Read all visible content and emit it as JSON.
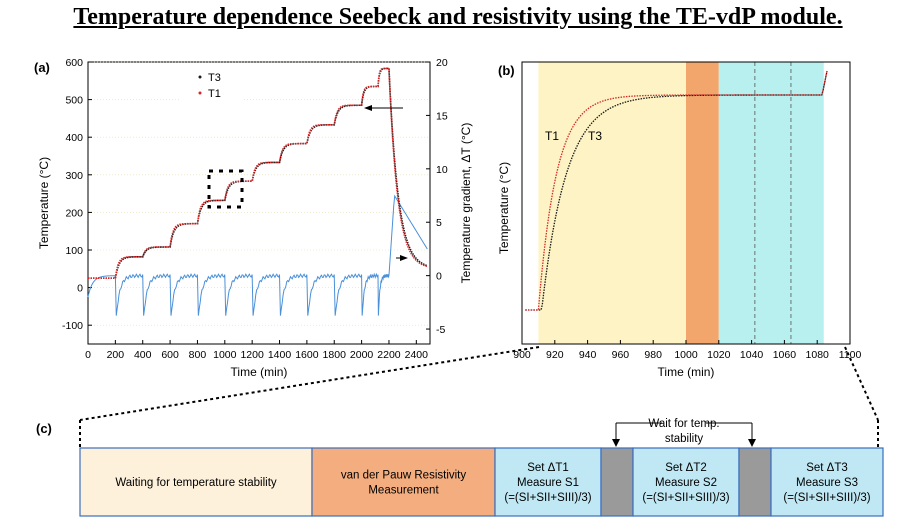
{
  "page_title": "Temperature dependence Seebeck and resistivity using the TE-vdP module.",
  "colors": {
    "t1": "#d62828",
    "t3": "#1a1a1a",
    "gradient": "#4a90d9",
    "yellow": "#fdf3c4",
    "orange": "#f2a66b",
    "cyan": "#b8f0f0",
    "gray": "#9a9a9a",
    "box_fill_c": "#fdf1dc",
    "box_fill_orange": "#f4ad7e",
    "box_fill_cyan": "#bfe8f4",
    "box_stroke": "#3a6ebd"
  },
  "chart_data": [
    {
      "panel": "(a)",
      "type": "line",
      "xlabel": "Time (min)",
      "ylabel": "Temperature (°C)",
      "y2label": "Temperature gradient, ΔT (°C)",
      "xlim": [
        0,
        2500
      ],
      "ylim": [
        -150,
        600
      ],
      "y2lim": [
        -6.4,
        20
      ],
      "xticks": [
        0,
        200,
        400,
        600,
        800,
        1000,
        1200,
        1400,
        1600,
        1800,
        2000,
        2200,
        2400
      ],
      "yticks": [
        -100,
        0,
        100,
        200,
        300,
        400,
        500,
        600
      ],
      "y2ticks": [
        -5,
        0,
        5,
        10,
        15,
        20
      ],
      "legend": [
        "T3",
        "T1"
      ],
      "legend_position": "top-center",
      "steps": [
        {
          "t_start": 0,
          "t_end": 200,
          "temp": 25
        },
        {
          "t_start": 200,
          "t_end": 400,
          "temp": 82
        },
        {
          "t_start": 400,
          "t_end": 600,
          "temp": 108
        },
        {
          "t_start": 600,
          "t_end": 800,
          "temp": 170
        },
        {
          "t_start": 800,
          "t_end": 1000,
          "temp": 232
        },
        {
          "t_start": 1000,
          "t_end": 1200,
          "temp": 283
        },
        {
          "t_start": 1200,
          "t_end": 1400,
          "temp": 333
        },
        {
          "t_start": 1400,
          "t_end": 1600,
          "temp": 383
        },
        {
          "t_start": 1600,
          "t_end": 1800,
          "temp": 433
        },
        {
          "t_start": 1800,
          "t_end": 2000,
          "temp": 485
        },
        {
          "t_start": 2000,
          "t_end": 2120,
          "temp": 535
        },
        {
          "t_start": 2120,
          "t_end": 2200,
          "temp": 583
        }
      ],
      "cooldown": {
        "t_start": 2200,
        "t_end": 2480,
        "temp_end": 50
      },
      "gradient_baseline": 0,
      "gradient_dip": -5,
      "gradient_peak": {
        "t": 2240,
        "value": 7.5
      },
      "gradient_end": {
        "t": 2480,
        "value": 2.5
      }
    },
    {
      "panel": "(b)",
      "type": "line",
      "xlabel": "Time (min)",
      "ylabel": "Temperature (°C)",
      "xlim": [
        900,
        1100
      ],
      "xticks": [
        900,
        920,
        940,
        960,
        980,
        1000,
        1020,
        1040,
        1060,
        1080,
        1100
      ],
      "series_labels": [
        "T1",
        "T3"
      ],
      "regions": [
        {
          "from": 910,
          "to": 1000,
          "fill": "yellow"
        },
        {
          "from": 1000,
          "to": 1020,
          "fill": "orange"
        },
        {
          "from": 1020,
          "to": 1084,
          "fill": "cyan"
        }
      ],
      "dashed_lines": [
        1042,
        1064
      ]
    }
  ],
  "panel_c": {
    "label": "(c)",
    "wait_label_line1": "Wait for temp.",
    "wait_label_line2": "stability",
    "boxes": [
      {
        "lines": [
          "Waiting for temperature stability"
        ],
        "fill": "box_fill_c"
      },
      {
        "lines": [
          "van der Pauw Resistivity",
          "Measurement"
        ],
        "fill": "box_fill_orange"
      },
      {
        "lines": [
          "Set ΔT1",
          "Measure S1",
          "(=(SI+SII+SIII)/3)"
        ],
        "fill": "box_fill_cyan"
      },
      {
        "lines": [],
        "fill": "gray"
      },
      {
        "lines": [
          "Set ΔT2",
          "Measure S2",
          "(=(SI+SII+SIII)/3)"
        ],
        "fill": "box_fill_cyan"
      },
      {
        "lines": [],
        "fill": "gray"
      },
      {
        "lines": [
          "Set ΔT3",
          "Measure S3",
          "(=(SI+SII+SIII)/3)"
        ],
        "fill": "box_fill_cyan"
      }
    ]
  }
}
